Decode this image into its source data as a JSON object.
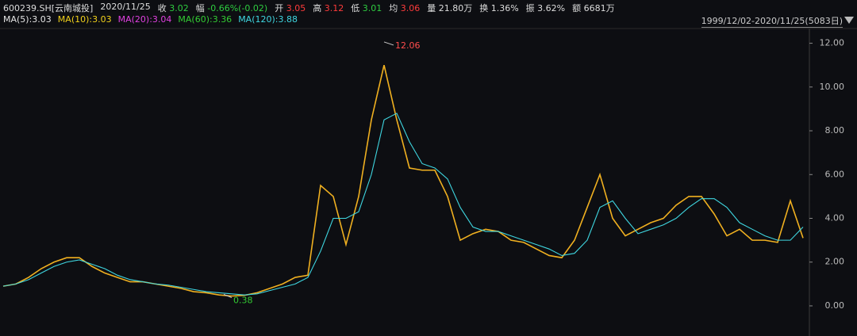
{
  "header": {
    "code": "600239.SH[云南城投]",
    "date": "2020/11/25",
    "items": [
      {
        "label": "收",
        "value": "3.02",
        "color": "#2ecc40"
      },
      {
        "label": "幅",
        "value": "-0.66%(-0.02)",
        "color": "#2ecc40"
      },
      {
        "label": "开",
        "value": "3.05",
        "color": "#ff3b3b"
      },
      {
        "label": "高",
        "value": "3.12",
        "color": "#ff3b3b"
      },
      {
        "label": "低",
        "value": "3.01",
        "color": "#2ecc40"
      },
      {
        "label": "均",
        "value": "3.06",
        "color": "#ff3b3b"
      },
      {
        "label": "量",
        "value": "21.80万",
        "color": "#dddddd"
      },
      {
        "label": "换",
        "value": "1.36%",
        "color": "#dddddd"
      },
      {
        "label": "振",
        "value": "3.62%",
        "color": "#dddddd"
      },
      {
        "label": "额",
        "value": "6681万",
        "color": "#dddddd"
      }
    ],
    "ma": [
      {
        "text": "MA(5):3.03",
        "color": "#e6e6e6"
      },
      {
        "text": "MA(10):3.03",
        "color": "#f2d21b"
      },
      {
        "text": "MA(20):3.04",
        "color": "#e040e0"
      },
      {
        "text": "MA(60):3.36",
        "color": "#33cc33"
      },
      {
        "text": "MA(120):3.88",
        "color": "#3fd6e0"
      }
    ],
    "range": "1999/12/02-2020/11/25(5083日)"
  },
  "chart_data": {
    "type": "line",
    "categories": [
      null,
      null,
      null,
      null,
      null,
      null,
      null,
      null,
      null,
      null,
      null,
      null,
      null,
      null,
      null,
      null,
      null,
      null,
      null,
      null,
      null,
      null,
      null,
      null,
      null,
      null,
      null,
      null,
      null,
      null,
      null,
      null,
      null,
      null,
      null,
      null,
      null,
      null,
      null,
      null,
      null,
      null,
      null,
      null,
      null,
      null,
      null,
      null,
      null,
      null,
      null,
      null,
      null,
      null,
      null,
      null,
      null,
      null,
      null,
      null,
      null,
      null,
      null,
      null
    ],
    "series": [
      {
        "color": "#f0b020",
        "values": [
          0.9,
          1.0,
          1.3,
          1.7,
          2.0,
          2.2,
          2.2,
          1.8,
          1.5,
          1.3,
          1.1,
          1.1,
          1.0,
          0.9,
          0.8,
          0.65,
          0.6,
          0.5,
          0.45,
          0.48,
          0.6,
          0.8,
          1.0,
          1.3,
          1.4,
          5.5,
          5.0,
          2.8,
          5.0,
          8.5,
          11.0,
          8.5,
          6.3,
          6.2,
          6.2,
          5.0,
          3.0,
          3.3,
          3.5,
          3.4,
          3.0,
          2.9,
          2.6,
          2.3,
          2.2,
          3.0,
          4.5,
          6.0,
          4.0,
          3.2,
          3.5,
          3.8,
          4.0,
          4.6,
          5.0,
          5.0,
          4.2,
          3.2,
          3.5,
          3.0,
          3.0,
          2.9,
          4.8,
          3.1
        ]
      },
      {
        "color": "#3fd6e0",
        "values": [
          0.9,
          1.0,
          1.2,
          1.5,
          1.8,
          2.0,
          2.1,
          1.9,
          1.7,
          1.4,
          1.2,
          1.1,
          1.0,
          0.95,
          0.85,
          0.75,
          0.65,
          0.6,
          0.55,
          0.5,
          0.55,
          0.7,
          0.85,
          1.0,
          1.3,
          2.5,
          4.0,
          4.0,
          4.3,
          6.0,
          8.5,
          8.8,
          7.5,
          6.5,
          6.3,
          5.8,
          4.5,
          3.6,
          3.4,
          3.4,
          3.2,
          3.0,
          2.8,
          2.6,
          2.3,
          2.4,
          3.0,
          4.5,
          4.8,
          4.0,
          3.3,
          3.5,
          3.7,
          4.0,
          4.5,
          4.9,
          4.9,
          4.5,
          3.8,
          3.5,
          3.2,
          3.0,
          3.0,
          3.6
        ]
      }
    ],
    "ylim": [
      -0.87,
      12.6
    ],
    "yticks": [
      {
        "value": 0,
        "label": "0.00"
      },
      {
        "value": 2,
        "label": "2.00"
      },
      {
        "value": 4,
        "label": "4.00"
      },
      {
        "value": 6,
        "label": "6.00"
      },
      {
        "value": 8,
        "label": "8.00"
      },
      {
        "value": 10,
        "label": "10.00"
      },
      {
        "value": 12,
        "label": "12.00"
      }
    ],
    "max_mark": 12.06,
    "min_mark": 0.38
  }
}
